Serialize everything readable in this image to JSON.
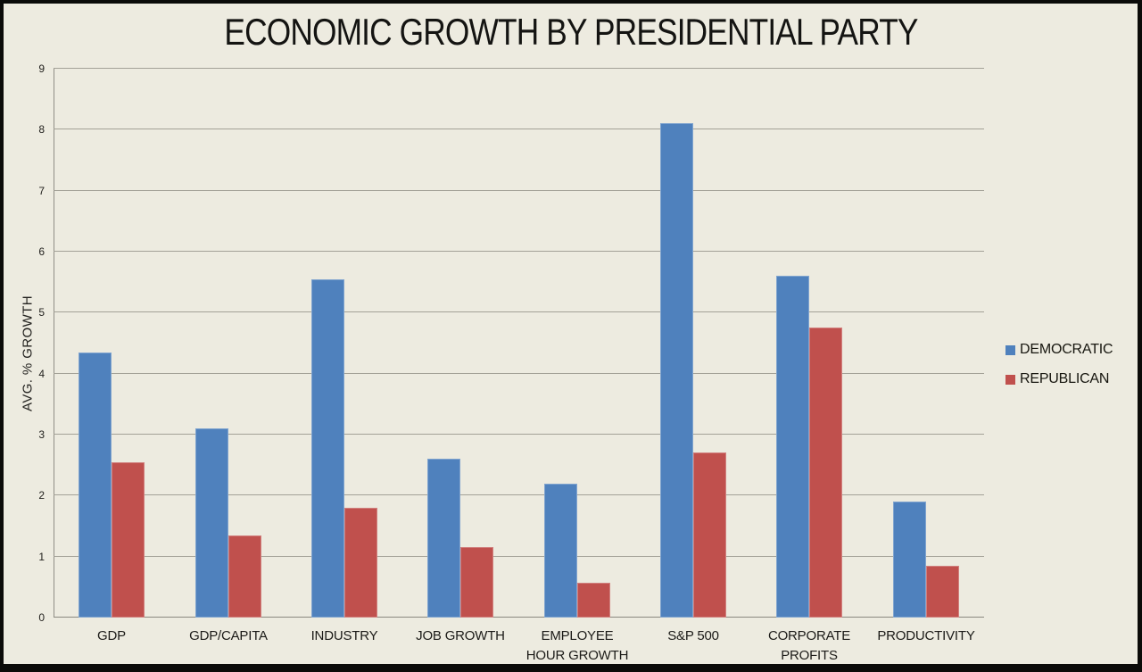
{
  "page": {
    "background": "#EDEBE0",
    "border_color": "#0B0B09"
  },
  "chart_data": {
    "type": "bar",
    "title": "ECONOMIC GROWTH BY PRESIDENTIAL PARTY",
    "ylabel": "AVG. % GROWTH",
    "xlabel": "",
    "ylim": [
      0,
      9
    ],
    "ytick_step": 1,
    "grid": true,
    "legend_position": "right",
    "categories": [
      "GDP",
      "GDP/CAPITA",
      "INDUSTRY",
      "JOB GROWTH",
      "EMPLOYEE\nHOUR GROWTH",
      "S&P 500",
      "CORPORATE\nPROFITS",
      "PRODUCTIVITY"
    ],
    "ytick_labels": [
      "0",
      "1",
      "2",
      "3",
      "4",
      "5",
      "6",
      "7",
      "8",
      "9"
    ],
    "series": [
      {
        "name": "DEMOCRATIC",
        "color": "#4F81BD",
        "values": [
          4.35,
          3.1,
          5.55,
          2.6,
          2.2,
          8.1,
          5.6,
          1.9
        ]
      },
      {
        "name": "REPUBLICAN",
        "color": "#C0504D",
        "values": [
          2.55,
          1.35,
          1.8,
          1.15,
          0.57,
          2.7,
          4.75,
          0.85
        ]
      }
    ]
  }
}
